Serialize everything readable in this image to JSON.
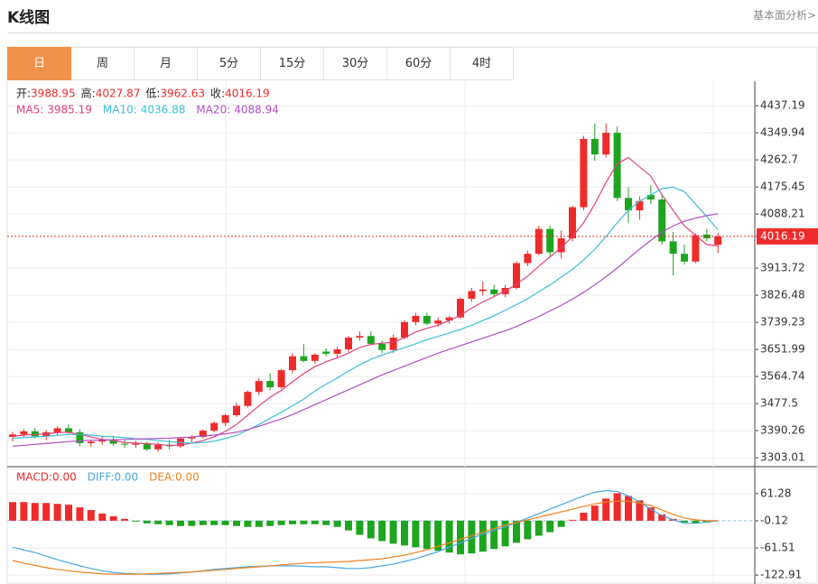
{
  "header": {
    "title": "K线图",
    "link": "基本面分析>"
  },
  "tabs": [
    "日",
    "周",
    "月",
    "5分",
    "15分",
    "30分",
    "60分",
    "4时"
  ],
  "chart_data": [
    {
      "type": "candlestick",
      "readout_labels": [
        "开:",
        "高:",
        "低:",
        "收:"
      ],
      "up_color": "#ee2b2b",
      "down_color": "#1ea51f",
      "open": [
        3370,
        3378,
        3388,
        3372,
        3385,
        3398,
        3385,
        3350,
        3355,
        3360,
        3348,
        3345,
        3350,
        3330,
        3345,
        3340,
        3365,
        3370,
        3390,
        3415,
        3440,
        3470,
        3515,
        3550,
        3530,
        3585,
        3630,
        3615,
        3645,
        3638,
        3652,
        3690,
        3695,
        3670,
        3650,
        3690,
        3740,
        3760,
        3735,
        3745,
        3755,
        3815,
        3840,
        3845,
        3830,
        3850,
        3930,
        3960,
        4040,
        3965,
        4010,
        4110,
        4330,
        4280,
        4350,
        4140,
        4100,
        4150,
        4135,
        4000,
        3960,
        3935,
        4022,
        3988.95
      ],
      "high": [
        3385,
        3395,
        3400,
        3392,
        3405,
        3410,
        3395,
        3362,
        3370,
        3375,
        3360,
        3358,
        3355,
        3352,
        3362,
        3370,
        3375,
        3395,
        3420,
        3445,
        3480,
        3520,
        3560,
        3575,
        3590,
        3640,
        3670,
        3640,
        3655,
        3660,
        3695,
        3710,
        3710,
        3680,
        3700,
        3745,
        3770,
        3770,
        3755,
        3760,
        3820,
        3850,
        3870,
        3860,
        3860,
        3935,
        3970,
        4050,
        4050,
        4035,
        4115,
        4340,
        4380,
        4380,
        4370,
        4175,
        4145,
        4180,
        4150,
        4030,
        3990,
        4025,
        4040,
        4027.87
      ],
      "low": [
        3355,
        3370,
        3365,
        3360,
        3375,
        3380,
        3340,
        3338,
        3345,
        3340,
        3335,
        3335,
        3325,
        3322,
        3330,
        3335,
        3352,
        3365,
        3385,
        3405,
        3435,
        3465,
        3505,
        3520,
        3525,
        3575,
        3610,
        3605,
        3630,
        3625,
        3645,
        3680,
        3665,
        3640,
        3640,
        3685,
        3730,
        3730,
        3725,
        3735,
        3750,
        3805,
        3825,
        3820,
        3820,
        3845,
        3920,
        3955,
        3950,
        3945,
        4000,
        4100,
        4260,
        4270,
        4130,
        4060,
        4070,
        4120,
        3990,
        3890,
        3925,
        3930,
        4000,
        3962.63
      ],
      "close": [
        3378,
        3388,
        3372,
        3385,
        3398,
        3385,
        3350,
        3355,
        3360,
        3348,
        3345,
        3350,
        3330,
        3345,
        3340,
        3365,
        3370,
        3390,
        3415,
        3440,
        3470,
        3515,
        3550,
        3530,
        3585,
        3630,
        3615,
        3635,
        3638,
        3652,
        3690,
        3695,
        3670,
        3650,
        3690,
        3740,
        3760,
        3735,
        3745,
        3755,
        3815,
        3840,
        3845,
        3830,
        3850,
        3930,
        3960,
        4040,
        3965,
        4010,
        4110,
        4330,
        4280,
        4350,
        4140,
        4100,
        4130,
        4135,
        4000,
        3960,
        3935,
        4020,
        4010,
        4016.19
      ],
      "series": [
        {
          "name": "MA5:",
          "color": "#e2407e",
          "values": [
            3372,
            3376,
            3378,
            3380,
            3384,
            3385,
            3378,
            3370,
            3362,
            3358,
            3352,
            3350,
            3348,
            3346,
            3342,
            3344,
            3350,
            3358,
            3370,
            3388,
            3410,
            3440,
            3470,
            3498,
            3520,
            3548,
            3574,
            3596,
            3612,
            3625,
            3640,
            3658,
            3668,
            3672,
            3675,
            3690,
            3708,
            3720,
            3730,
            3745,
            3762,
            3785,
            3805,
            3822,
            3840,
            3862,
            3888,
            3920,
            3950,
            3980,
            4015,
            4060,
            4120,
            4190,
            4250,
            4270,
            4240,
            4210,
            4150,
            4100,
            4050,
            4020,
            3990,
            3985.19
          ]
        },
        {
          "name": "MA10:",
          "color": "#3cbfd8",
          "values": [
            3365,
            3368,
            3370,
            3372,
            3375,
            3378,
            3378,
            3376,
            3372,
            3370,
            3368,
            3364,
            3362,
            3358,
            3355,
            3352,
            3350,
            3352,
            3356,
            3365,
            3375,
            3392,
            3410,
            3430,
            3450,
            3470,
            3492,
            3518,
            3540,
            3560,
            3582,
            3602,
            3620,
            3634,
            3646,
            3658,
            3670,
            3683,
            3694,
            3705,
            3716,
            3730,
            3745,
            3760,
            3778,
            3796,
            3815,
            3838,
            3860,
            3885,
            3910,
            3940,
            3975,
            4015,
            4060,
            4100,
            4130,
            4150,
            4170,
            4175,
            4160,
            4120,
            4080,
            4036.88
          ]
        },
        {
          "name": "MA20:",
          "color": "#b04fc4",
          "values": [
            3340,
            3343,
            3346,
            3349,
            3352,
            3355,
            3357,
            3359,
            3360,
            3361,
            3362,
            3363,
            3364,
            3365,
            3366,
            3368,
            3370,
            3373,
            3376,
            3380,
            3385,
            3394,
            3404,
            3416,
            3428,
            3442,
            3458,
            3474,
            3490,
            3506,
            3522,
            3538,
            3554,
            3570,
            3584,
            3598,
            3612,
            3626,
            3640,
            3652,
            3664,
            3676,
            3688,
            3700,
            3712,
            3726,
            3742,
            3758,
            3776,
            3794,
            3814,
            3836,
            3860,
            3886,
            3914,
            3945,
            3975,
            4003,
            4030,
            4050,
            4065,
            4075,
            4083,
            4088.94
          ]
        }
      ],
      "ylim": [
        3280,
        4516
      ],
      "yticks": [
        4437.19,
        4349.94,
        4262.7,
        4175.45,
        4088.21,
        3913.72,
        3826.48,
        3739.23,
        3651.99,
        3564.74,
        3477.5,
        3390.26,
        3303.01
      ],
      "grid": true
    },
    {
      "type": "macd",
      "bars": {
        "name": "MACD:",
        "value_label": "0.00",
        "up_color": "#ee2b2b",
        "down_color": "#1ea51f",
        "values": [
          42,
          42,
          40,
          40,
          38,
          36,
          30,
          24,
          16,
          10,
          4,
          -2,
          -6,
          -8,
          -10,
          -12,
          -12,
          -10,
          -10,
          -10,
          -12,
          -14,
          -14,
          -12,
          -10,
          -8,
          -8,
          -8,
          -10,
          -14,
          -22,
          -32,
          -40,
          -46,
          -52,
          -56,
          -60,
          -64,
          -68,
          -72,
          -76,
          -74,
          -70,
          -64,
          -58,
          -50,
          -42,
          -34,
          -26,
          -14,
          2,
          18,
          34,
          50,
          62,
          56,
          46,
          30,
          14,
          4,
          -4,
          -6,
          -4,
          0
        ]
      },
      "series": [
        {
          "name": "DIFF:",
          "value_label": "0.00",
          "color": "#48a8e2",
          "values": [
            -60,
            -66,
            -72,
            -80,
            -88,
            -95,
            -102,
            -108,
            -113,
            -117,
            -119,
            -120,
            -121,
            -121,
            -120,
            -118,
            -116,
            -113,
            -110,
            -108,
            -106,
            -104,
            -103,
            -102,
            -102,
            -102,
            -103,
            -104,
            -104,
            -106,
            -108,
            -108,
            -106,
            -102,
            -98,
            -92,
            -86,
            -78,
            -70,
            -60,
            -50,
            -40,
            -30,
            -22,
            -14,
            -4,
            6,
            16,
            26,
            36,
            46,
            56,
            64,
            68,
            66,
            56,
            42,
            26,
            12,
            2,
            -6,
            -6,
            -3,
            0
          ]
        },
        {
          "name": "DEA:",
          "value_label": "0.00",
          "color": "#f0821e",
          "values": [
            -90,
            -96,
            -101,
            -106,
            -110,
            -113,
            -116,
            -118,
            -120,
            -121,
            -121,
            -121,
            -120,
            -119,
            -118,
            -117,
            -116,
            -114,
            -112,
            -110,
            -108,
            -106,
            -104,
            -102,
            -100,
            -98,
            -96,
            -95,
            -94,
            -93,
            -92,
            -90,
            -88,
            -86,
            -82,
            -78,
            -72,
            -66,
            -58,
            -50,
            -42,
            -34,
            -26,
            -18,
            -10,
            -4,
            2,
            8,
            14,
            20,
            26,
            32,
            38,
            42,
            44,
            44,
            40,
            34,
            24,
            14,
            6,
            2,
            0,
            0
          ]
        }
      ],
      "ylim": [
        -143,
        120
      ],
      "yticks": [
        61.28,
        -0.12,
        -61.51,
        -122.91
      ],
      "grid": true
    }
  ]
}
